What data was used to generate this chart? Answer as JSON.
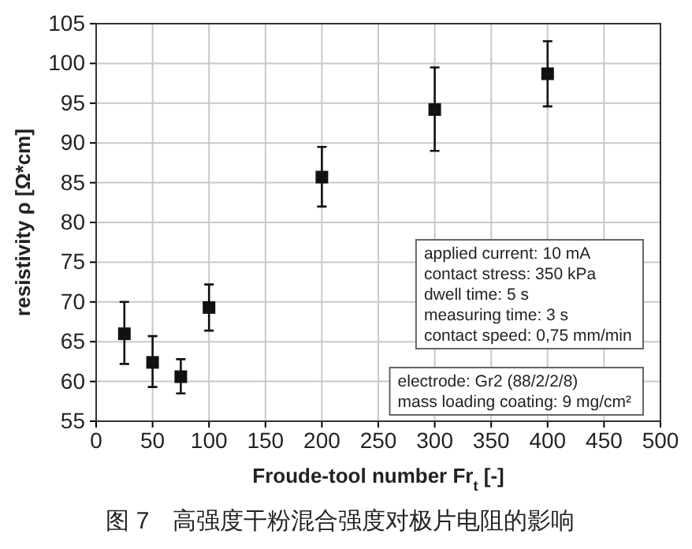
{
  "chart_data": {
    "type": "scatter",
    "title": "图 7　高强度干粉混合强度对极片电阻的影响",
    "xlabel": "Froude-tool number Fr$_{t}$ [-]",
    "ylabel": "resistivity ρ [Ω*cm]",
    "x": [
      25,
      50,
      75,
      100,
      200,
      300,
      400
    ],
    "series": [
      {
        "color": "#111111",
        "values": [
          66,
          62.4,
          60.6,
          69.3,
          85.7,
          94.2,
          98.7
        ],
        "errors": [
          [
            62.2,
            70
          ],
          [
            59.3,
            65.7
          ],
          [
            58.5,
            62.8
          ],
          [
            66.4,
            72.2
          ],
          [
            82,
            89.5
          ],
          [
            89,
            99.5
          ],
          [
            94.6,
            102.8
          ]
        ]
      }
    ],
    "xlim": [
      0,
      500
    ],
    "xticks": [
      0,
      50,
      100,
      150,
      200,
      250,
      300,
      350,
      400,
      450,
      500
    ],
    "ylim": [
      55,
      105
    ],
    "yticks": [
      55,
      60,
      65,
      70,
      75,
      80,
      85,
      90,
      95,
      100,
      105
    ],
    "grid": true,
    "marker": "square",
    "annotations": [
      "applied current: 10 mA\ncontact stress: 350 kPa\ndwell time: 5 s\nmeasuring time: 3 s\ncontact speed: 0,75 mm/min",
      "electrode: Gr2 (88/2/2/8)\nmass loading coating: 9 mg/cm²"
    ]
  }
}
